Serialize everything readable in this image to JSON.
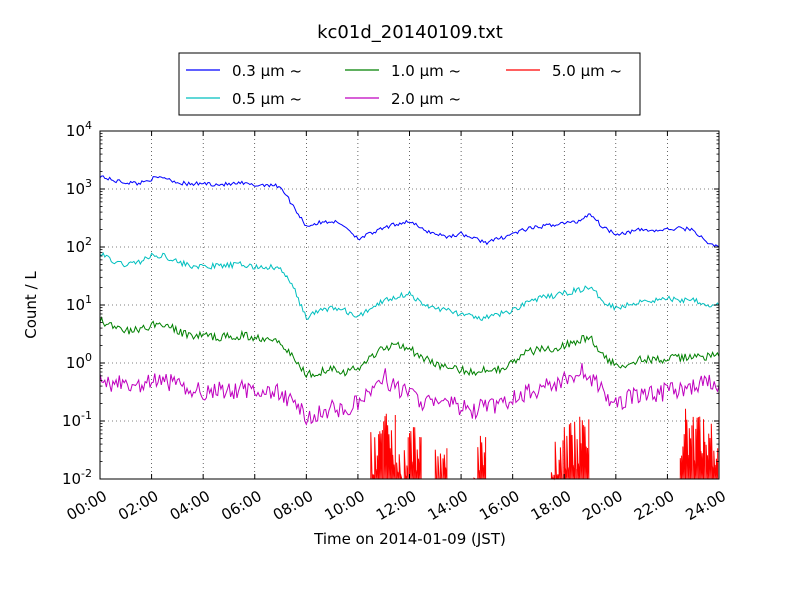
{
  "chart_data": {
    "type": "line",
    "title": "kc01d_20140109.txt",
    "xlabel": "Time on 2014-01-09 (JST)",
    "ylabel": "Count / L",
    "yscale": "log",
    "ylim": [
      0.01,
      10000
    ],
    "xlim_hours": [
      0,
      24
    ],
    "grid": true,
    "legend_position": "top, outside plot",
    "x_tick_labels": [
      "00:00",
      "02:00",
      "04:00",
      "06:00",
      "08:00",
      "10:00",
      "12:00",
      "14:00",
      "16:00",
      "18:00",
      "20:00",
      "22:00",
      "24:00"
    ],
    "y_ticks": [
      {
        "value": 0.01,
        "base": "10",
        "exp": "-2"
      },
      {
        "value": 0.1,
        "base": "10",
        "exp": "-1"
      },
      {
        "value": 1,
        "base": "10",
        "exp": "0"
      },
      {
        "value": 10,
        "base": "10",
        "exp": "1"
      },
      {
        "value": 100,
        "base": "10",
        "exp": "2"
      },
      {
        "value": 1000,
        "base": "10",
        "exp": "3"
      },
      {
        "value": 10000,
        "base": "10",
        "exp": "4"
      }
    ],
    "x_hours": [
      0,
      0.5,
      1,
      1.5,
      2,
      2.5,
      3,
      3.5,
      4,
      4.5,
      5,
      5.5,
      6,
      6.5,
      7,
      7.5,
      8,
      8.5,
      9,
      9.5,
      10,
      10.5,
      11,
      11.5,
      12,
      12.5,
      13,
      13.5,
      14,
      14.5,
      15,
      15.5,
      16,
      16.5,
      17,
      17.5,
      18,
      18.5,
      19,
      19.5,
      20,
      20.5,
      21,
      21.5,
      22,
      22.5,
      23,
      23.5,
      24
    ],
    "series": [
      {
        "name": "0.3 μm ~",
        "color": "#0000ff",
        "values": [
          1700,
          1400,
          1300,
          1250,
          1500,
          1600,
          1300,
          1200,
          1250,
          1200,
          1200,
          1250,
          1150,
          1200,
          1100,
          500,
          230,
          260,
          280,
          230,
          140,
          170,
          210,
          250,
          280,
          200,
          170,
          150,
          170,
          140,
          120,
          140,
          170,
          200,
          220,
          240,
          260,
          270,
          380,
          220,
          170,
          180,
          200,
          190,
          200,
          210,
          200,
          120,
          100
        ]
      },
      {
        "name": "0.5 μm ~",
        "color": "#00bfbf",
        "values": [
          80,
          55,
          50,
          55,
          70,
          72,
          55,
          48,
          45,
          47,
          48,
          50,
          45,
          45,
          42,
          20,
          6,
          8,
          9,
          8,
          6,
          9,
          12,
          14,
          16,
          10,
          9,
          8,
          7,
          6,
          6,
          7,
          8,
          11,
          13,
          14,
          16,
          18,
          20,
          12,
          9,
          10,
          12,
          12,
          13,
          12,
          13,
          10,
          10
        ]
      },
      {
        "name": "1.0 μm ~",
        "color": "#008000",
        "values": [
          5.5,
          4.2,
          3.5,
          3.7,
          4.5,
          4.8,
          3.5,
          3.0,
          3.0,
          2.8,
          2.8,
          3.0,
          2.7,
          2.8,
          2.4,
          1.2,
          0.65,
          0.7,
          0.85,
          0.7,
          0.8,
          1.3,
          1.8,
          2.2,
          1.8,
          1.2,
          1.0,
          0.8,
          0.75,
          0.7,
          0.8,
          0.8,
          1.0,
          1.5,
          1.7,
          1.8,
          2.0,
          2.4,
          2.8,
          1.3,
          0.9,
          1.0,
          1.2,
          1.1,
          1.2,
          1.2,
          1.3,
          1.3,
          1.3
        ]
      },
      {
        "name": "2.0 μm ~",
        "color": "#bf00bf",
        "values": [
          0.5,
          0.45,
          0.4,
          0.38,
          0.45,
          0.5,
          0.4,
          0.35,
          0.33,
          0.35,
          0.32,
          0.35,
          0.33,
          0.32,
          0.3,
          0.2,
          0.12,
          0.13,
          0.18,
          0.15,
          0.2,
          0.35,
          0.6,
          0.35,
          0.3,
          0.22,
          0.2,
          0.2,
          0.17,
          0.15,
          0.18,
          0.18,
          0.25,
          0.3,
          0.35,
          0.42,
          0.5,
          0.75,
          0.6,
          0.3,
          0.2,
          0.25,
          0.3,
          0.3,
          0.32,
          0.35,
          0.4,
          0.45,
          0.4
        ]
      },
      {
        "name": "5.0 μm ~",
        "color": "#ff0000",
        "values": [
          null,
          null,
          null,
          null,
          null,
          null,
          null,
          null,
          null,
          null,
          null,
          null,
          null,
          null,
          null,
          null,
          null,
          null,
          null,
          null,
          null,
          0.03,
          0.05,
          0.02,
          0.03,
          null,
          0.02,
          null,
          null,
          0.02,
          null,
          null,
          null,
          null,
          null,
          0.02,
          0.04,
          0.05,
          null,
          null,
          null,
          null,
          null,
          null,
          null,
          0.06,
          0.05,
          0.04,
          0.03
        ]
      }
    ]
  }
}
